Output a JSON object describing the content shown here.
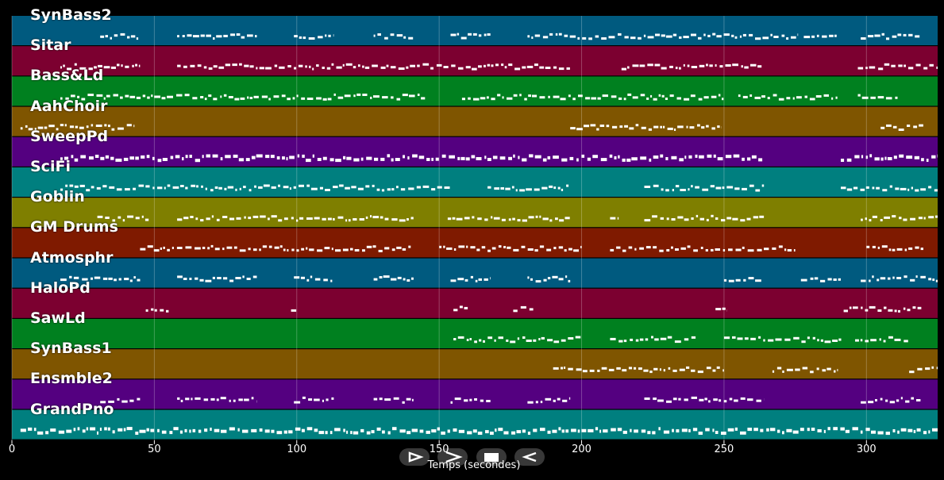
{
  "axis": {
    "xlabel": "Temps (secondes)",
    "xlim": [
      0,
      325
    ],
    "ticks": [
      "0",
      "50",
      "100",
      "150",
      "200",
      "250",
      "300"
    ],
    "tick_values": [
      0,
      50,
      100,
      150,
      200,
      250,
      300
    ]
  },
  "tracks": [
    {
      "name": "SynBass2",
      "color": "#005a7f",
      "notes": [
        [
          31,
          45
        ],
        [
          58,
          86
        ],
        [
          99,
          113
        ],
        [
          127,
          141
        ],
        [
          154,
          168
        ],
        [
          181,
          276
        ],
        [
          278,
          290
        ],
        [
          298,
          319
        ]
      ]
    },
    {
      "name": "Sitar",
      "color": "#7c0030",
      "notes": [
        [
          17,
          45
        ],
        [
          58,
          196
        ],
        [
          214,
          264
        ],
        [
          297,
          325
        ]
      ]
    },
    {
      "name": "Bass&Ld",
      "color": "#00801f",
      "notes": [
        [
          17,
          145
        ],
        [
          158,
          250
        ],
        [
          255,
          290
        ],
        [
          297,
          311
        ]
      ]
    },
    {
      "name": "AahChoir",
      "color": "#7f5500",
      "notes": [
        [
          3,
          43
        ],
        [
          196,
          249
        ],
        [
          305,
          320
        ]
      ]
    },
    {
      "name": "SweepPd",
      "color": "#540080",
      "notes": [
        [
          17,
          264
        ],
        [
          291,
          325
        ]
      ]
    },
    {
      "name": "SciFi",
      "color": "#007f7f",
      "notes": [
        [
          17,
          154
        ],
        [
          167,
          196
        ],
        [
          222,
          264
        ],
        [
          291,
          325
        ]
      ]
    },
    {
      "name": "Goblin",
      "color": "#7f7f00",
      "notes": [
        [
          30,
          48
        ],
        [
          58,
          141
        ],
        [
          153,
          196
        ],
        [
          210,
          213
        ],
        [
          222,
          264
        ],
        [
          298,
          325
        ]
      ]
    },
    {
      "name": "GM Drums",
      "color": "#7f1a00",
      "notes": [
        [
          45,
          140
        ],
        [
          150,
          200
        ],
        [
          210,
          275
        ],
        [
          300,
          320
        ]
      ]
    },
    {
      "name": "Atmosphr",
      "color": "#005a7f",
      "notes": [
        [
          17,
          45
        ],
        [
          58,
          86
        ],
        [
          99,
          113
        ],
        [
          127,
          141
        ],
        [
          154,
          168
        ],
        [
          181,
          196
        ],
        [
          250,
          264
        ],
        [
          277,
          291
        ],
        [
          298,
          325
        ]
      ]
    },
    {
      "name": "HaloPd",
      "color": "#7c0030",
      "notes": [
        [
          47,
          55
        ],
        [
          98,
          100
        ],
        [
          155,
          160
        ],
        [
          176,
          183
        ],
        [
          247,
          251
        ],
        [
          292,
          320
        ]
      ]
    },
    {
      "name": "SawLd",
      "color": "#00801f",
      "notes": [
        [
          155,
          200
        ],
        [
          210,
          240
        ],
        [
          250,
          292
        ],
        [
          296,
          315
        ]
      ]
    },
    {
      "name": "SynBass1",
      "color": "#7f5500",
      "notes": [
        [
          190,
          250
        ],
        [
          267,
          290
        ],
        [
          315,
          325
        ]
      ]
    },
    {
      "name": "Ensmble2",
      "color": "#540080",
      "notes": [
        [
          31,
          45
        ],
        [
          58,
          86
        ],
        [
          99,
          113
        ],
        [
          127,
          141
        ],
        [
          154,
          168
        ],
        [
          181,
          196
        ],
        [
          222,
          264
        ],
        [
          298,
          319
        ]
      ]
    },
    {
      "name": "GrandPno",
      "color": "#007f7f",
      "notes": [
        [
          3,
          325
        ]
      ]
    }
  ],
  "controls": {
    "play_icon": "play-icon",
    "forward_icon": "forward-icon",
    "stop_icon": "stop-icon",
    "back_icon": "back-icon"
  }
}
